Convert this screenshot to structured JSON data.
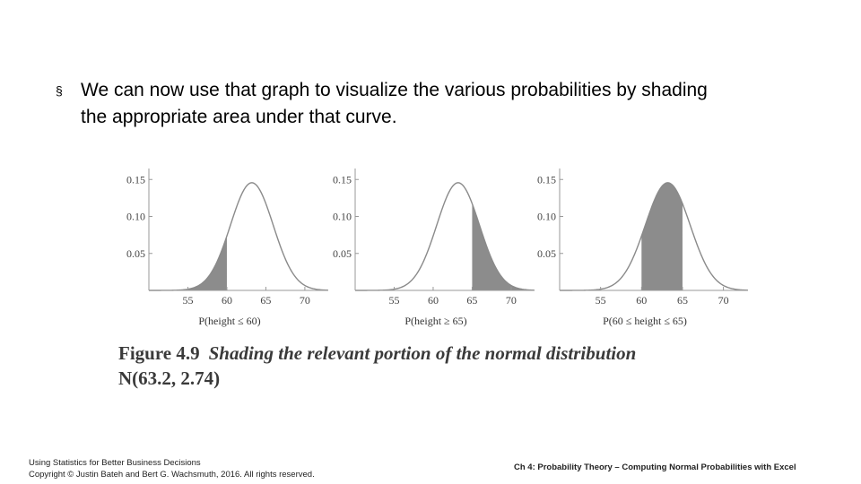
{
  "bullet": {
    "marker": "§",
    "line1": "We can now use that graph to visualize the various probabilities by shading",
    "line2": "the appropriate area under that curve."
  },
  "chart_data": [
    {
      "type": "area",
      "mean": 63.2,
      "sd": 2.74,
      "xlim": [
        50,
        73
      ],
      "ylim": [
        0,
        0.16
      ],
      "x_ticks": [
        "55",
        "60",
        "65",
        "70"
      ],
      "y_ticks": [
        "0.05",
        "0.10",
        "0.15"
      ],
      "shaded_range": [
        50,
        60
      ],
      "xlabel": "P(height ≤ 60)"
    },
    {
      "type": "area",
      "mean": 63.2,
      "sd": 2.74,
      "xlim": [
        50,
        73
      ],
      "ylim": [
        0,
        0.16
      ],
      "x_ticks": [
        "55",
        "60",
        "65",
        "70"
      ],
      "y_ticks": [
        "0.05",
        "0.10",
        "0.15"
      ],
      "shaded_range": [
        65,
        73
      ],
      "xlabel": "P(height ≥ 65)"
    },
    {
      "type": "area",
      "mean": 63.2,
      "sd": 2.74,
      "xlim": [
        50,
        73
      ],
      "ylim": [
        0,
        0.16
      ],
      "x_ticks": [
        "55",
        "60",
        "65",
        "70"
      ],
      "y_ticks": [
        "0.05",
        "0.10",
        "0.15"
      ],
      "shaded_range": [
        60,
        65
      ],
      "xlabel": "P(60 ≤ height ≤ 65)"
    }
  ],
  "figure": {
    "label": "Figure 4.9",
    "title": "Shading the relevant portion of the normal distribution",
    "subtitle": "N(63.2, 2.74)"
  },
  "footer": {
    "book_title": "Using Statistics for Better Business Decisions",
    "copyright": "Copyright © Justin Bateh and Bert G. Wachsmuth, 2016. All rights reserved.",
    "chapter": "Ch 4: Probability Theory – Computing Normal Probabilities with Excel"
  },
  "colors": {
    "curve": "#8a8a8a",
    "shade": "#8c8c8c",
    "axis": "#999999",
    "tick_text": "#444444"
  }
}
